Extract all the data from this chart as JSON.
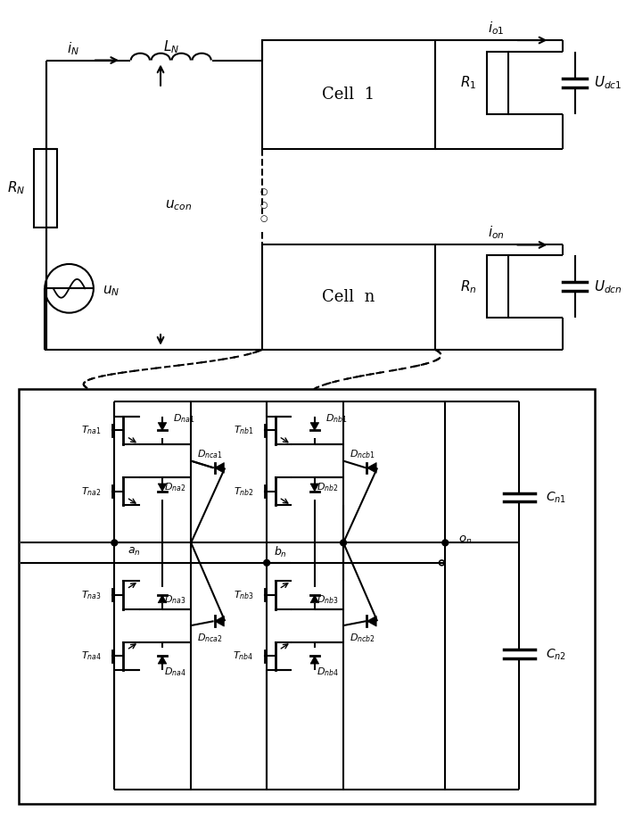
{
  "bg_color": "#ffffff",
  "fig_width": 7.02,
  "fig_height": 9.18,
  "dpi": 100
}
